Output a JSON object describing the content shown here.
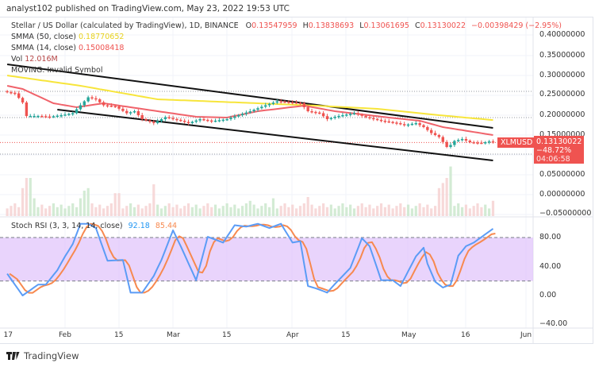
{
  "publisher": "analyst102 published on TradingView.com, May 23, 2022 19:53 UTC",
  "legend": {
    "title": "Stellar / US Dollar (calculated by TradingView), 1D, BINANCE",
    "o_label": "O",
    "o": "0.13547959",
    "h_label": "H",
    "h": "0.13838693",
    "l_label": "L",
    "l": "0.13061695",
    "c_label": "C",
    "c": "0.13130022",
    "change": "−0.00398429 (−2.95%)",
    "smma50_label": "SMMA (50, close)",
    "smma50": "0.18770652",
    "smma14_label": "SMMA (14, close)",
    "smma14": "0.15008418",
    "vol_label": "Vol",
    "vol": "12.016M",
    "moving_label": "MOVING: Invalid Symbol",
    "stoch_label": "Stoch RSI (3, 3, 14, 14, close)",
    "stoch_k": "92.18",
    "stoch_d": "85.44"
  },
  "price_tag": {
    "symbol": "XLMUSD",
    "price": "0.13130022",
    "change_pct": "−48.72%",
    "countdown": "04:06:58"
  },
  "footer": {
    "brand": "TradingView"
  },
  "colors": {
    "up": "#26a69a",
    "down": "#ef5350",
    "smma50": "#f7e53b",
    "smma14": "#f0636b",
    "stoch_k": "#5b9cf6",
    "stoch_d": "#f7894f",
    "stoch_band": "#e1c6fb"
  },
  "chart_data": [
    {
      "type": "candlestick",
      "price_ticks": [
        "0.40000000",
        "0.35000000",
        "0.30000000",
        "0.25000000",
        "0.20000000",
        "0.15000000",
        "0.05000000",
        "0.00000000",
        "−0.05000000"
      ],
      "time_ticks": [
        "17",
        "Feb",
        "15",
        "Mar",
        "15",
        "Apr",
        "15",
        "May",
        "16",
        "Jun"
      ],
      "ylim": [
        -0.05,
        0.4
      ],
      "closes": [
        [
          "2022-01-17",
          0.258
        ],
        [
          "2022-01-19",
          0.255
        ],
        [
          "2022-01-21",
          0.232
        ],
        [
          "2022-01-22",
          0.198
        ],
        [
          "2022-01-25",
          0.198
        ],
        [
          "2022-01-28",
          0.196
        ],
        [
          "2022-01-31",
          0.2
        ],
        [
          "2022-02-03",
          0.205
        ],
        [
          "2022-02-05",
          0.225
        ],
        [
          "2022-02-07",
          0.245
        ],
        [
          "2022-02-09",
          0.24
        ],
        [
          "2022-02-11",
          0.225
        ],
        [
          "2022-02-14",
          0.222
        ],
        [
          "2022-02-17",
          0.205
        ],
        [
          "2022-02-19",
          0.21
        ],
        [
          "2022-02-21",
          0.19
        ],
        [
          "2022-02-24",
          0.18
        ],
        [
          "2022-02-27",
          0.195
        ],
        [
          "2022-03-03",
          0.186
        ],
        [
          "2022-03-05",
          0.18
        ],
        [
          "2022-03-08",
          0.19
        ],
        [
          "2022-03-11",
          0.185
        ],
        [
          "2022-03-15",
          0.19
        ],
        [
          "2022-03-18",
          0.2
        ],
        [
          "2022-03-21",
          0.21
        ],
        [
          "2022-03-25",
          0.225
        ],
        [
          "2022-03-28",
          0.235
        ],
        [
          "2022-04-01",
          0.232
        ],
        [
          "2022-04-03",
          0.23
        ],
        [
          "2022-04-05",
          0.21
        ],
        [
          "2022-04-08",
          0.205
        ],
        [
          "2022-04-10",
          0.19
        ],
        [
          "2022-04-12",
          0.196
        ],
        [
          "2022-04-14",
          0.2
        ],
        [
          "2022-04-17",
          0.205
        ],
        [
          "2022-04-20",
          0.195
        ],
        [
          "2022-04-24",
          0.186
        ],
        [
          "2022-04-28",
          0.18
        ],
        [
          "2022-04-30",
          0.175
        ],
        [
          "2022-05-03",
          0.18
        ],
        [
          "2022-05-05",
          0.17
        ],
        [
          "2022-05-07",
          0.155
        ],
        [
          "2022-05-09",
          0.145
        ],
        [
          "2022-05-11",
          0.12
        ],
        [
          "2022-05-12",
          0.125
        ],
        [
          "2022-05-13",
          0.135
        ],
        [
          "2022-05-15",
          0.14
        ],
        [
          "2022-05-17",
          0.132
        ],
        [
          "2022-05-20",
          0.13
        ],
        [
          "2022-05-22",
          0.134
        ],
        [
          "2022-05-23",
          0.1313
        ]
      ],
      "smma50": [
        [
          "2022-01-17",
          0.3
        ],
        [
          "2022-02-05",
          0.274
        ],
        [
          "2022-02-25",
          0.24
        ],
        [
          "2022-03-23",
          0.23
        ],
        [
          "2022-04-07",
          0.224
        ],
        [
          "2022-04-23",
          0.216
        ],
        [
          "2022-05-09",
          0.2
        ],
        [
          "2022-05-23",
          0.1877
        ]
      ],
      "smma14": [
        [
          "2022-01-17",
          0.274
        ],
        [
          "2022-01-21",
          0.266
        ],
        [
          "2022-01-29",
          0.23
        ],
        [
          "2022-02-04",
          0.22
        ],
        [
          "2022-02-11",
          0.23
        ],
        [
          "2022-02-25",
          0.21
        ],
        [
          "2022-03-07",
          0.196
        ],
        [
          "2022-03-15",
          0.194
        ],
        [
          "2022-03-23",
          0.21
        ],
        [
          "2022-04-04",
          0.224
        ],
        [
          "2022-04-12",
          0.21
        ],
        [
          "2022-04-26",
          0.194
        ],
        [
          "2022-05-04",
          0.186
        ],
        [
          "2022-05-10",
          0.17
        ],
        [
          "2022-05-23",
          0.15
        ]
      ],
      "channel_upper": [
        [
          "2022-01-17",
          0.328
        ],
        [
          "2022-05-23",
          0.168
        ]
      ],
      "channel_lower": [
        [
          "2022-01-30",
          0.214
        ],
        [
          "2022-05-23",
          0.086
        ]
      ],
      "horizontal_levels": [
        0.26,
        0.194,
        0.102
      ],
      "volume_m": [
        [
          "2022-01-21",
          22
        ],
        [
          "2022-01-22",
          30
        ],
        [
          "2022-01-23",
          30
        ],
        [
          "2022-01-24",
          14
        ],
        [
          "2022-02-05",
          14
        ],
        [
          "2022-02-06",
          20
        ],
        [
          "2022-02-07",
          22
        ],
        [
          "2022-02-14",
          18
        ],
        [
          "2022-02-15",
          18
        ],
        [
          "2022-02-24",
          25
        ],
        [
          "2022-03-21",
          12
        ],
        [
          "2022-03-27",
          14
        ],
        [
          "2022-04-05",
          15
        ],
        [
          "2022-05-09",
          22
        ],
        [
          "2022-05-10",
          26
        ],
        [
          "2022-05-11",
          30
        ],
        [
          "2022-05-12",
          39
        ],
        [
          "2022-05-23",
          12.016
        ]
      ]
    },
    {
      "type": "line",
      "title": "Stoch RSI (3, 3, 14, 14, close)",
      "y_ticks": [
        "80.00",
        "40.00",
        "0.00",
        "−40.00"
      ],
      "ylim": [
        -40,
        100
      ],
      "band": [
        20,
        80
      ],
      "k": [
        [
          "2022-01-17",
          30
        ],
        [
          "2022-01-21",
          0
        ],
        [
          "2022-01-25",
          15
        ],
        [
          "2022-01-27",
          15
        ],
        [
          "2022-01-30",
          35
        ],
        [
          "2022-02-01",
          54
        ],
        [
          "2022-02-03",
          71
        ],
        [
          "2022-02-05",
          99
        ],
        [
          "2022-02-07",
          99
        ],
        [
          "2022-02-09",
          93
        ],
        [
          "2022-02-12",
          48
        ],
        [
          "2022-02-16",
          49
        ],
        [
          "2022-02-18",
          4
        ],
        [
          "2022-02-21",
          4
        ],
        [
          "2022-02-24",
          27
        ],
        [
          "2022-02-26",
          49
        ],
        [
          "2022-03-01",
          90
        ],
        [
          "2022-03-03",
          68
        ],
        [
          "2022-03-07",
          21
        ],
        [
          "2022-03-10",
          81
        ],
        [
          "2022-03-14",
          73
        ],
        [
          "2022-03-17",
          97
        ],
        [
          "2022-03-20",
          95
        ],
        [
          "2022-03-23",
          99
        ],
        [
          "2022-03-26",
          93
        ],
        [
          "2022-03-29",
          99
        ],
        [
          "2022-04-01",
          73
        ],
        [
          "2022-04-03",
          75
        ],
        [
          "2022-04-05",
          13
        ],
        [
          "2022-04-07",
          10
        ],
        [
          "2022-04-10",
          4
        ],
        [
          "2022-04-12",
          16
        ],
        [
          "2022-04-16",
          38
        ],
        [
          "2022-04-19",
          79
        ],
        [
          "2022-04-21",
          68
        ],
        [
          "2022-04-24",
          21
        ],
        [
          "2022-04-27",
          21
        ],
        [
          "2022-04-29",
          13
        ],
        [
          "2022-05-03",
          54
        ],
        [
          "2022-05-05",
          66
        ],
        [
          "2022-05-06",
          44
        ],
        [
          "2022-05-08",
          19
        ],
        [
          "2022-05-10",
          11
        ],
        [
          "2022-05-12",
          15
        ],
        [
          "2022-05-14",
          55
        ],
        [
          "2022-05-16",
          68
        ],
        [
          "2022-05-18",
          73
        ],
        [
          "2022-05-23",
          92.18
        ]
      ],
      "d_last": 85.44
    }
  ]
}
